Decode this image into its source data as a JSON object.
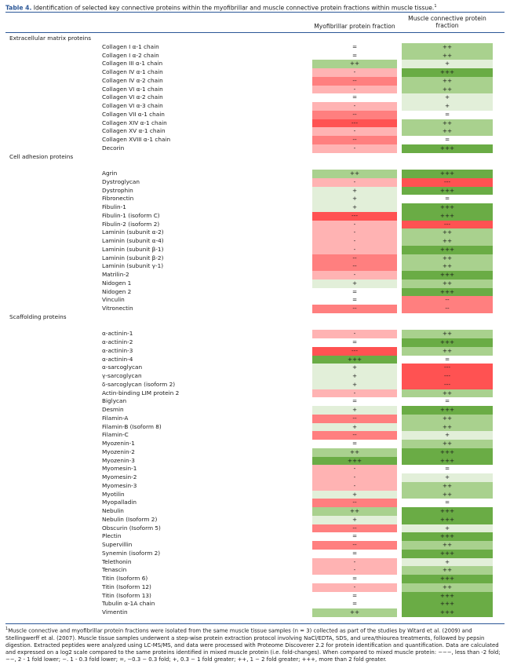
{
  "table": {
    "number": "Table 4.",
    "title": "Identification of selected key connective proteins within the myofibrillar and muscle connective protein fractions within muscle tissue.",
    "title_note": "1",
    "col1_header": "Myofibrillar protein fraction",
    "col2_header": "Muscle connective protein fraction"
  },
  "colors": {
    "+++": "#6aac45",
    "++": "#a9d18e",
    "+": "#e2efd9",
    "=": "#ffffff",
    "-": "#ffb3b3",
    "--": "#ff7f7f",
    "---": "#ff5252"
  },
  "rows": [
    {
      "section": "Extracellular matrix proteins"
    },
    {
      "name": "Collagen I α-1 chain",
      "m": "=",
      "c": "++"
    },
    {
      "name": "Collagen I α-2 chain",
      "m": "=",
      "c": "++"
    },
    {
      "name": "Collagen III α-1 chain",
      "m": "++",
      "c": "+"
    },
    {
      "name": "Collagen IV α-1 chain",
      "m": "-",
      "c": "+++"
    },
    {
      "name": "Collagen IV α-2 chain",
      "m": "--",
      "c": "++"
    },
    {
      "name": "Collagen VI α-1 chain",
      "m": "-",
      "c": "++"
    },
    {
      "name": "Collagen VI α-2 chain",
      "m": "=",
      "c": "+"
    },
    {
      "name": "Collagen VI α-3 chain",
      "m": "-",
      "c": "+"
    },
    {
      "name": "Collagen VII α-1 chain",
      "m": "--",
      "c": "="
    },
    {
      "name": "Collagen XIV α-1 chain",
      "m": "---",
      "c": "++"
    },
    {
      "name": "Collagen XV α-1 chain",
      "m": "-",
      "c": "++"
    },
    {
      "name": "Collagen XVIII α-1 chain",
      "m": "--",
      "c": "="
    },
    {
      "name": "Decorin",
      "m": "-",
      "c": "+++"
    },
    {
      "section": "Cell adhesion proteins"
    },
    {
      "spacer": true
    },
    {
      "name": "Agrin",
      "m": "++",
      "c": "+++"
    },
    {
      "name": "Dystroglycan",
      "m": "-",
      "c": "---"
    },
    {
      "name": "Dystrophin",
      "m": "+",
      "c": "+++"
    },
    {
      "name": "Fibronectin",
      "m": "+",
      "c": "="
    },
    {
      "name": "Fibulin-1",
      "m": "+",
      "c": "+++"
    },
    {
      "name": "Fibulin-1 (isoform C)",
      "m": "---",
      "c": "+++"
    },
    {
      "name": "Fibulin-2 (isoform 2)",
      "m": "-",
      "c": "---"
    },
    {
      "name": "Laminin (subunit α-2)",
      "m": "-",
      "c": "++"
    },
    {
      "name": "Laminin (subunit α-4)",
      "m": "-",
      "c": "++"
    },
    {
      "name": "Laminin (subunit β-1)",
      "m": "-",
      "c": "+++"
    },
    {
      "name": "Laminin (subunit β-2)",
      "m": "--",
      "c": "++"
    },
    {
      "name": "Laminin (subunit γ-1)",
      "m": "--",
      "c": "++"
    },
    {
      "name": "Matrilin-2",
      "m": "-",
      "c": "+++"
    },
    {
      "name": "Nidogen 1",
      "m": "+",
      "c": "++"
    },
    {
      "name": "Nidogen 2",
      "m": "=",
      "c": "+++"
    },
    {
      "name": "Vinculin",
      "m": "=",
      "c": "--"
    },
    {
      "name": "Vitronectin",
      "m": "--",
      "c": "--"
    },
    {
      "section": "Scaffolding proteins"
    },
    {
      "spacer": true
    },
    {
      "name": "α-actinin-1",
      "m": "-",
      "c": "++"
    },
    {
      "name": "α-actinin-2",
      "m": "=",
      "c": "+++"
    },
    {
      "name": "α-actinin-3",
      "m": "---",
      "c": "++"
    },
    {
      "name": "α-actinin-4",
      "m": "+++",
      "c": "="
    },
    {
      "name": "α-sarcoglycan",
      "m": "+",
      "c": "---"
    },
    {
      "name": "γ-sarcoglycan",
      "m": "+",
      "c": "---"
    },
    {
      "name": "δ-sarcoglycan (isoform 2)",
      "m": "+",
      "c": "---"
    },
    {
      "name": "Actin-binding LIM protein 2",
      "m": "-",
      "c": "++"
    },
    {
      "name": "Biglycan",
      "m": "=",
      "c": "="
    },
    {
      "name": "Desmin",
      "m": "+",
      "c": "+++"
    },
    {
      "name": "Filamin-A",
      "m": "--",
      "c": "++"
    },
    {
      "name": "Filamin-B (Isoform 8)",
      "m": "+",
      "c": "++"
    },
    {
      "name": "Filamin-C",
      "m": "--",
      "c": "+"
    },
    {
      "name": "Myozenin-1",
      "m": "=",
      "c": "++"
    },
    {
      "name": "Myozenin-2",
      "m": "++",
      "c": "+++"
    },
    {
      "name": "Myozenin-3",
      "m": "+++",
      "c": "+++"
    },
    {
      "name": "Myomesin-1",
      "m": "-",
      "c": "="
    },
    {
      "name": "Myomesin-2",
      "m": "-",
      "c": "+"
    },
    {
      "name": "Myomesin-3",
      "m": "-",
      "c": "++"
    },
    {
      "name": "Myotilin",
      "m": "+",
      "c": "++"
    },
    {
      "name": "Myopalladin",
      "m": "--",
      "c": "="
    },
    {
      "name": "Nebulin",
      "m": "++",
      "c": "+++"
    },
    {
      "name": "Nebulin (Isoform 2)",
      "m": "+",
      "c": "+++"
    },
    {
      "name": "Obscurin (Isoform 5)",
      "m": "--",
      "c": "+"
    },
    {
      "name": "Plectin",
      "m": "=",
      "c": "+++"
    },
    {
      "name": "Supervillin",
      "m": "--",
      "c": "++"
    },
    {
      "name": "Synemin (isoform 2)",
      "m": "=",
      "c": "+++"
    },
    {
      "name": "Telethonin",
      "m": "-",
      "c": "+"
    },
    {
      "name": "Tenascin",
      "m": "-",
      "c": "++"
    },
    {
      "name": "Titin (Isoform 6)",
      "m": "=",
      "c": "+++"
    },
    {
      "name": "Titin (Isoform 12)",
      "m": "-",
      "c": "++"
    },
    {
      "name": "Titin (Isoform 13)",
      "m": "=",
      "c": "+++"
    },
    {
      "name": "Tubulin α-1A chain",
      "m": "=",
      "c": "+++"
    },
    {
      "name": "Vimentin",
      "m": "++",
      "c": "+++"
    }
  ],
  "footnote": {
    "mark": "1",
    "text": "Muscle connective and myofibrillar protein fractions were isolated from the same muscle tissue samples (n = 3) collected as part of the studies by Witard et al. (2009) and Stellingwerff et al. (2007). Muscle tissue samples underwent a step-wise protein extraction protocol involving NaCl/EDTA, SDS, and urea/thiourea treatments, followed by pepsin digestion. Extracted peptides were analyzed using LC-MS/MS, and data were processed with Proteome Discoverer 2.2 for protein identification and quantification. Data are calculated and expressed on a log2 scale compared to the same proteins identified in mixed muscle protein (i.e. fold-changes). When compared to mixed muscle protein: −−−, less than -2 fold; −−, 2 - 1 fold lower; −. 1 - 0.3 fold lower; =, −0.3 − 0.3 fold; +, 0.3 − 1 fold greater; ++, 1 − 2 fold greater; +++, more than 2 fold greater."
  }
}
